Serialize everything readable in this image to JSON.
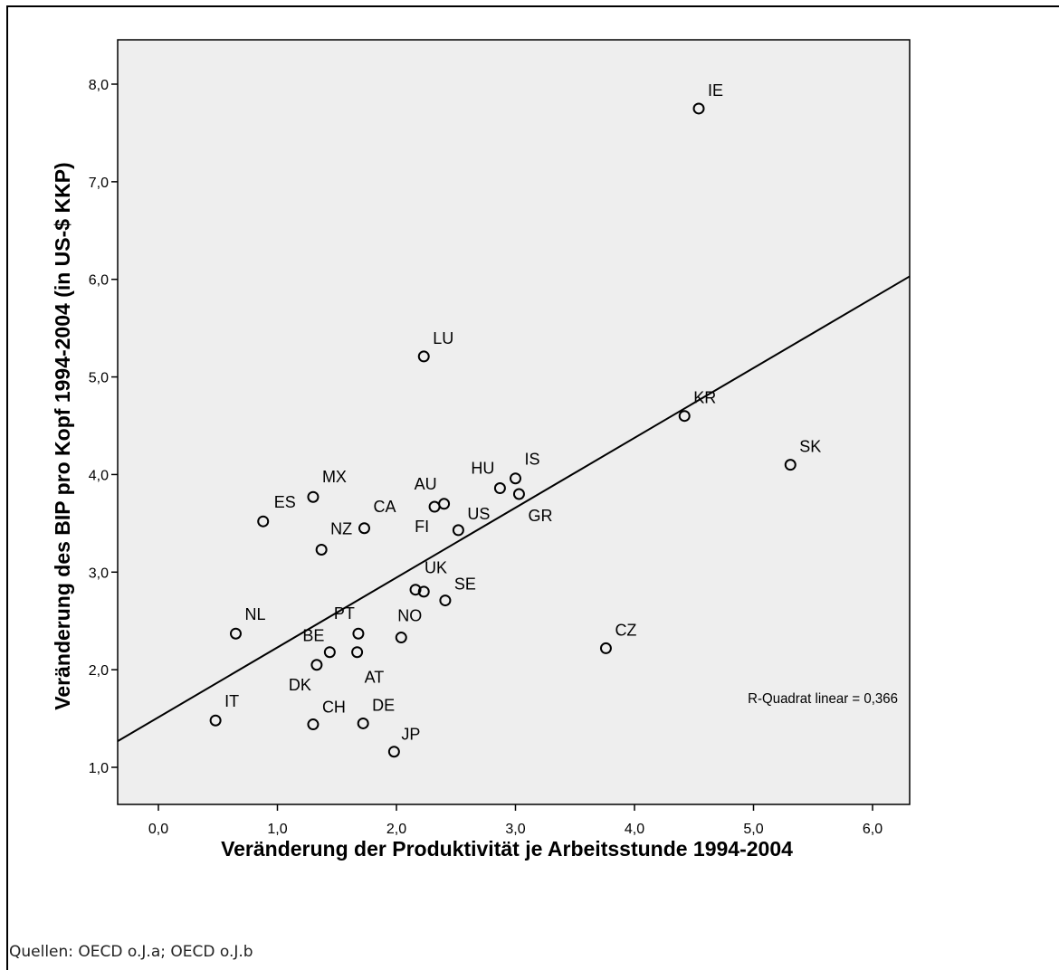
{
  "chart_data": {
    "type": "scatter",
    "xlabel": "Veränderung der Produktivität je Arbeitsstunde 1994-2004",
    "ylabel": "Veränderung des BIP pro Kopf 1994-2004 (in US-$ KKP)",
    "xlim": [
      -0.34,
      6.34
    ],
    "ylim": [
      0.6,
      8.5
    ],
    "xticks": [
      0.0,
      1.0,
      2.0,
      3.0,
      4.0,
      5.0,
      6.0
    ],
    "yticks": [
      1.0,
      2.0,
      3.0,
      4.0,
      5.0,
      6.0,
      7.0,
      8.0
    ],
    "xtick_labels": [
      "0,0",
      "1,0",
      "2,0",
      "3,0",
      "4,0",
      "5,0",
      "6,0"
    ],
    "ytick_labels": [
      "1,0",
      "2,0",
      "3,0",
      "4,0",
      "5,0",
      "6,0",
      "7,0",
      "8,0"
    ],
    "grid": false,
    "background": "#eeeeee",
    "points": [
      {
        "label": "IE",
        "x": 4.54,
        "y": 7.75
      },
      {
        "label": "LU",
        "x": 2.23,
        "y": 5.21
      },
      {
        "label": "KR",
        "x": 4.42,
        "y": 4.6
      },
      {
        "label": "SK",
        "x": 5.31,
        "y": 4.1
      },
      {
        "label": "IS",
        "x": 3.0,
        "y": 3.96
      },
      {
        "label": "HU",
        "x": 2.87,
        "y": 3.86
      },
      {
        "label": "GR",
        "x": 3.03,
        "y": 3.8
      },
      {
        "label": "MX",
        "x": 1.3,
        "y": 3.77
      },
      {
        "label": "AU",
        "x": 2.4,
        "y": 3.7
      },
      {
        "label": "FI",
        "x": 2.32,
        "y": 3.67
      },
      {
        "label": "ES",
        "x": 0.88,
        "y": 3.52
      },
      {
        "label": "CA",
        "x": 1.73,
        "y": 3.45
      },
      {
        "label": "US",
        "x": 2.52,
        "y": 3.43
      },
      {
        "label": "NZ",
        "x": 1.37,
        "y": 3.23
      },
      {
        "label": "UK",
        "x": 2.16,
        "y": 2.82
      },
      {
        "label": "UK",
        "x": 2.23,
        "y": 2.8
      },
      {
        "label": "SE",
        "x": 2.41,
        "y": 2.71
      },
      {
        "label": "NL",
        "x": 0.65,
        "y": 2.37
      },
      {
        "label": "PT",
        "x": 1.68,
        "y": 2.37
      },
      {
        "label": "NO",
        "x": 2.04,
        "y": 2.33
      },
      {
        "label": "CZ",
        "x": 3.76,
        "y": 2.22
      },
      {
        "label": "BE",
        "x": 1.44,
        "y": 2.18
      },
      {
        "label": "AT",
        "x": 1.67,
        "y": 2.18
      },
      {
        "label": "DK",
        "x": 1.33,
        "y": 2.05
      },
      {
        "label": "IT",
        "x": 0.48,
        "y": 1.48
      },
      {
        "label": "CH",
        "x": 1.3,
        "y": 1.44
      },
      {
        "label": "DE",
        "x": 1.72,
        "y": 1.45
      },
      {
        "label": "JP",
        "x": 1.98,
        "y": 1.16
      }
    ],
    "fit_line": {
      "intercept": 1.51,
      "slope": 0.713
    },
    "annotation": "R-Quadrat linear = 0,366"
  },
  "source": "Quellen: OECD o.J.a; OECD o.J.b"
}
